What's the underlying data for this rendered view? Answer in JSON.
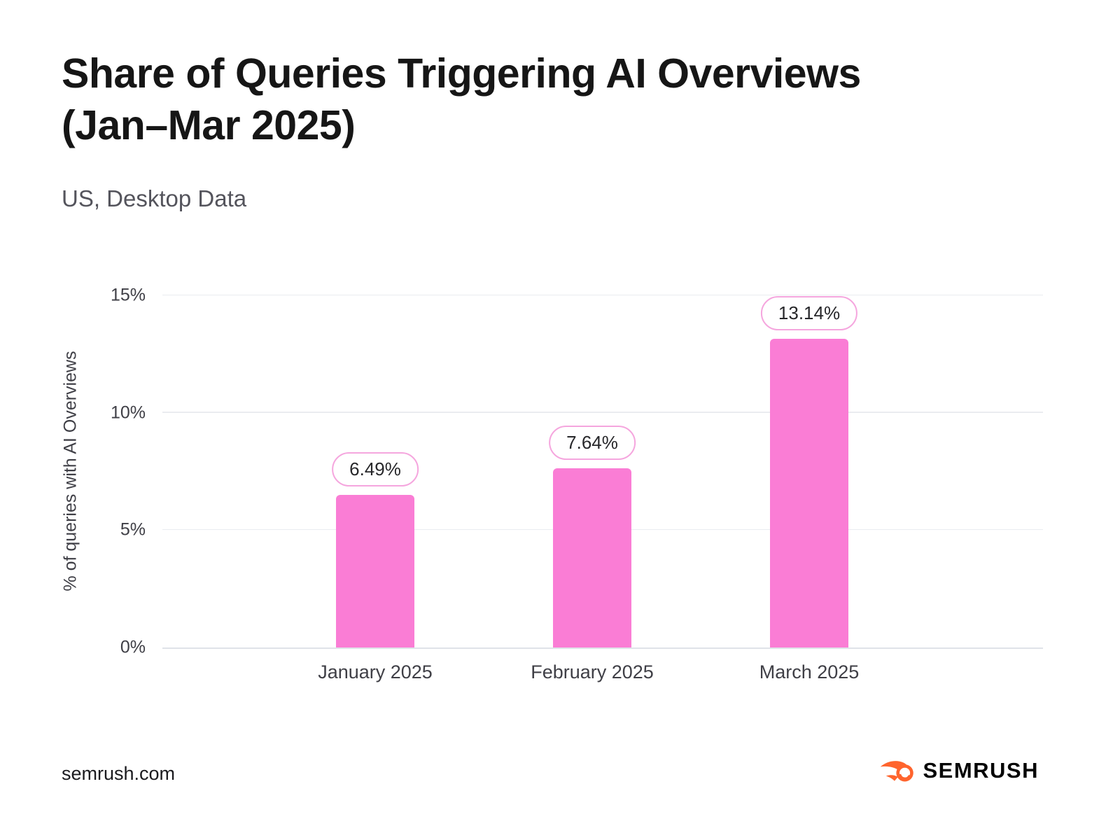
{
  "page": {
    "title_line1": "Share of Queries Triggering AI Overviews",
    "title_line2": "(Jan–Mar 2025)",
    "subtitle": "US, Desktop Data",
    "footer_link": "semrush.com",
    "brand": "SEMRUSH"
  },
  "colors": {
    "bar": "#FA7DD5",
    "pill_border": "#F5A6DE",
    "gridline": "#EAECF0",
    "axis_line": "#DFE3E9",
    "title_text": "#161616",
    "subtitle_text": "#54545C",
    "tick_text": "#3F3F46",
    "brand_orange": "#FF642D"
  },
  "icons": {
    "brand_icon": "semrush-flame-icon"
  },
  "chart_data": {
    "type": "bar",
    "title": "Share of Queries Triggering AI Overviews (Jan–Mar 2025)",
    "subtitle": "US, Desktop Data",
    "categories": [
      "January 2025",
      "February 2025",
      "March 2025"
    ],
    "values": [
      6.49,
      7.64,
      13.14
    ],
    "labels": [
      "6.49%",
      "7.64%",
      "13.14%"
    ],
    "xlabel": "",
    "ylabel": "% of queries with AI Overviews",
    "ylim": [
      0,
      15
    ],
    "yticks": [
      0,
      5,
      10,
      15
    ],
    "ytick_labels": [
      "0%",
      "5%",
      "10%",
      "15%"
    ],
    "grid": true,
    "legend": false,
    "bar_color": "#FA7DD5"
  }
}
